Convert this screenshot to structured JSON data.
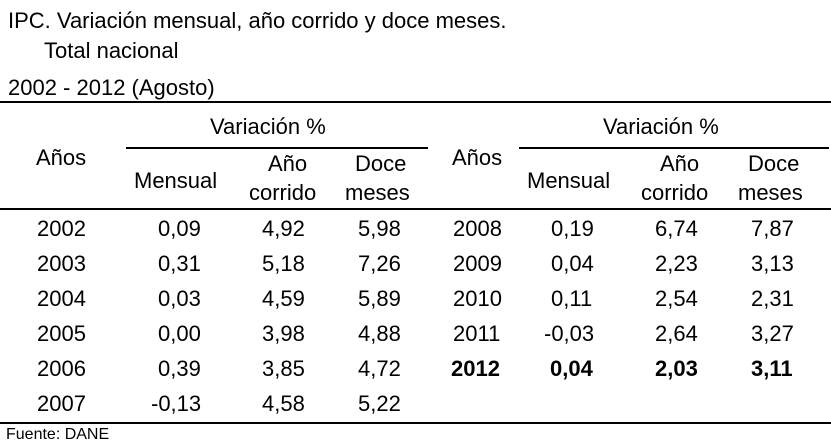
{
  "title": {
    "line1": "IPC. Variación mensual, año corrido y doce meses.",
    "line2": "Total nacional",
    "line3": "2002 - 2012 (Agosto)"
  },
  "headers": {
    "anos": "Años",
    "variacion": "Variación %",
    "mensual": "Mensual",
    "ano": "Año",
    "corrido": "corrido",
    "doce": "Doce",
    "meses": "meses"
  },
  "left_rows": [
    {
      "year": "2002",
      "mensual": "0,09",
      "corrido": "4,92",
      "doce": "5,98"
    },
    {
      "year": "2003",
      "mensual": "0,31",
      "corrido": "5,18",
      "doce": "7,26"
    },
    {
      "year": "2004",
      "mensual": "0,03",
      "corrido": "4,59",
      "doce": "5,89"
    },
    {
      "year": "2005",
      "mensual": "0,00",
      "corrido": "3,98",
      "doce": "4,88"
    },
    {
      "year": "2006",
      "mensual": "0,39",
      "corrido": "3,85",
      "doce": "4,72"
    },
    {
      "year": "2007",
      "mensual": "-0,13",
      "corrido": "4,58",
      "doce": "5,22"
    }
  ],
  "right_rows": [
    {
      "year": "2008",
      "mensual": "0,19",
      "corrido": "6,74",
      "doce": "7,87"
    },
    {
      "year": "2009",
      "mensual": "0,04",
      "corrido": "2,23",
      "doce": "3,13"
    },
    {
      "year": "2010",
      "mensual": "0,11",
      "corrido": "2,54",
      "doce": "2,31"
    },
    {
      "year": "2011",
      "mensual": "-0,03",
      "corrido": "2,64",
      "doce": "3,27"
    },
    {
      "year": "2012",
      "mensual": "0,04",
      "corrido": "2,03",
      "doce": "3,11"
    }
  ],
  "source": "Fuente: DANE"
}
